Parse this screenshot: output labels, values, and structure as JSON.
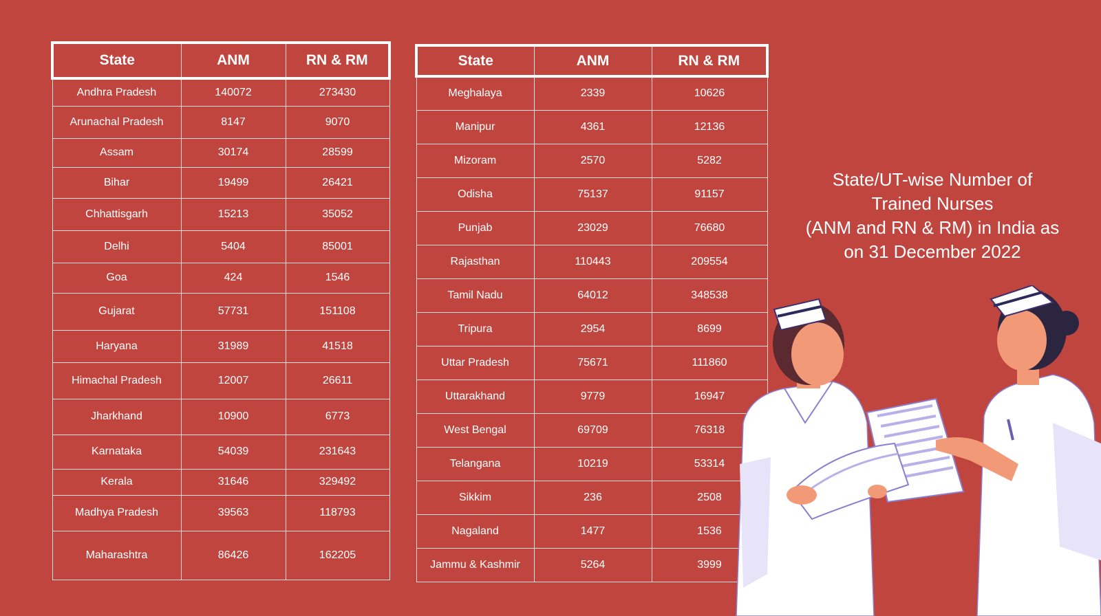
{
  "title_lines": [
    "State/UT-wise Number of",
    "Trained Nurses",
    "(ANM and RN & RM) in India as",
    "on 31 December 2022"
  ],
  "columns": [
    "State",
    "ANM",
    "RN & RM"
  ],
  "table_left": [
    [
      "Andhra Pradesh",
      "140072",
      "273430"
    ],
    [
      "Arunachal Pradesh",
      "8147",
      "9070"
    ],
    [
      "Assam",
      "30174",
      "28599"
    ],
    [
      "Bihar",
      "19499",
      "26421"
    ],
    [
      "Chhattisgarh",
      "15213",
      "35052"
    ],
    [
      "Delhi",
      "5404",
      "85001"
    ],
    [
      "Goa",
      "424",
      "1546"
    ],
    [
      "Gujarat",
      "57731",
      "151108"
    ],
    [
      "Haryana",
      "31989",
      "41518"
    ],
    [
      "Himachal Pradesh",
      "12007",
      "26611"
    ],
    [
      "Jharkhand",
      "10900",
      "6773"
    ],
    [
      "Karnataka",
      "54039",
      "231643"
    ],
    [
      "Kerala",
      "31646",
      "329492"
    ],
    [
      "Madhya Pradesh",
      "39563",
      "118793"
    ],
    [
      "Maharashtra",
      "86426",
      "162205"
    ]
  ],
  "table_right": [
    [
      "Meghalaya",
      "2339",
      "10626"
    ],
    [
      "Manipur",
      "4361",
      "12136"
    ],
    [
      "Mizoram",
      "2570",
      "5282"
    ],
    [
      "Odisha",
      "75137",
      "91157"
    ],
    [
      "Punjab",
      "23029",
      "76680"
    ],
    [
      "Rajasthan",
      "110443",
      "209554"
    ],
    [
      "Tamil Nadu",
      "64012",
      "348538"
    ],
    [
      "Tripura",
      "2954",
      "8699"
    ],
    [
      "Uttar Pradesh",
      "75671",
      "111860"
    ],
    [
      "Uttarakhand",
      "9779",
      "16947"
    ],
    [
      "West Bengal",
      "69709",
      "76318"
    ],
    [
      "Telangana",
      "10219",
      "53314"
    ],
    [
      "Sikkim",
      "236",
      "2508"
    ],
    [
      "Nagaland",
      "1477",
      "1536"
    ],
    [
      "Jammu & Kashmir",
      "5264",
      "3999"
    ]
  ],
  "colors": {
    "background": "#c0453f",
    "text": "#ffffff",
    "skin": "#f29a78",
    "hair": "#5a2a30",
    "uniform": "#ffffff",
    "uniform_shade": "#cfc8ef"
  },
  "illustration": {
    "icon": "two-nurses-reading-chart-illustration"
  }
}
